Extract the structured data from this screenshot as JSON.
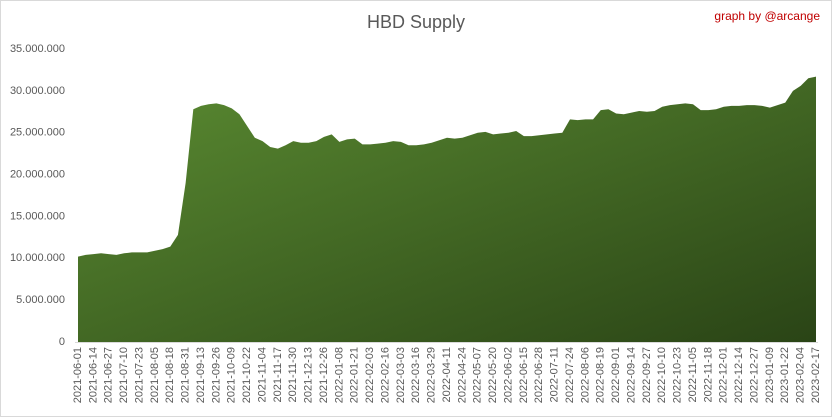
{
  "chart_data": {
    "type": "area",
    "title": "HBD Supply",
    "annotation": "graph by @arcange",
    "color": "#5b8c32",
    "categories": [
      "2021-06-01",
      null,
      "2021-06-14",
      null,
      "2021-06-27",
      null,
      "2021-07-10",
      null,
      "2021-07-23",
      null,
      "2021-08-05",
      null,
      "2021-08-18",
      null,
      "2021-08-31",
      null,
      "2021-09-13",
      null,
      "2021-09-26",
      null,
      "2021-10-09",
      null,
      "2021-10-22",
      null,
      "2021-11-04",
      null,
      "2021-11-17",
      null,
      "2021-11-30",
      null,
      "2021-12-13",
      null,
      "2021-12-26",
      null,
      "2022-01-08",
      null,
      "2022-01-21",
      null,
      "2022-02-03",
      null,
      "2022-02-16",
      null,
      "2022-03-03",
      null,
      "2022-03-16",
      null,
      "2022-03-29",
      null,
      "2022-04-11",
      null,
      "2022-04-24",
      null,
      "2022-05-07",
      null,
      "2022-05-20",
      null,
      "2022-06-02",
      null,
      "2022-06-15",
      null,
      "2022-06-28",
      null,
      "2022-07-11",
      null,
      "2022-07-24",
      null,
      "2022-08-06",
      null,
      "2022-08-19",
      null,
      "2022-09-01",
      null,
      "2022-09-14",
      null,
      "2022-09-27",
      null,
      "2022-10-10",
      null,
      "2022-10-23",
      null,
      "2022-11-05",
      null,
      "2022-11-18",
      null,
      "2022-12-01",
      null,
      "2022-12-14",
      null,
      "2022-12-27",
      null,
      "2023-01-09",
      null,
      "2023-01-22",
      null,
      "2023-02-04",
      null,
      "2023-02-17"
    ],
    "values": [
      10200000,
      10400000,
      10500000,
      10600000,
      10500000,
      10400000,
      10600000,
      10700000,
      10700000,
      10700000,
      10900000,
      11100000,
      11400000,
      12800000,
      19000000,
      27800000,
      28200000,
      28400000,
      28500000,
      28300000,
      27900000,
      27200000,
      25800000,
      24400000,
      24000000,
      23300000,
      23100000,
      23500000,
      24000000,
      23800000,
      23800000,
      24000000,
      24500000,
      24800000,
      23900000,
      24200000,
      24300000,
      23600000,
      23600000,
      23700000,
      23800000,
      24000000,
      23900000,
      23500000,
      23500000,
      23600000,
      23800000,
      24100000,
      24400000,
      24300000,
      24400000,
      24700000,
      25000000,
      25100000,
      24800000,
      24900000,
      25000000,
      25200000,
      24600000,
      24600000,
      24700000,
      24800000,
      24900000,
      25000000,
      26600000,
      26500000,
      26600000,
      26600000,
      27700000,
      27800000,
      27300000,
      27200000,
      27400000,
      27600000,
      27500000,
      27600000,
      28100000,
      28300000,
      28400000,
      28500000,
      28400000,
      27700000,
      27700000,
      27800000,
      28100000,
      28200000,
      28200000,
      28300000,
      28300000,
      28200000,
      28000000,
      28300000,
      28600000,
      30000000,
      30600000,
      31500000,
      31700000
    ],
    "ylim": [
      0,
      35000000
    ],
    "yticks": [
      0,
      {
        "value": 5000000,
        "label": "5.000.000"
      },
      {
        "value": 10000000,
        "label": "10.000.000"
      },
      {
        "value": 15000000,
        "label": "15.000.000"
      },
      {
        "value": 20000000,
        "label": "20.000.000"
      },
      {
        "value": 25000000,
        "label": "25.000.000"
      },
      {
        "value": 30000000,
        "label": "30.000.000"
      },
      {
        "value": 35000000,
        "label": "35.000.000"
      }
    ],
    "grid": false
  }
}
